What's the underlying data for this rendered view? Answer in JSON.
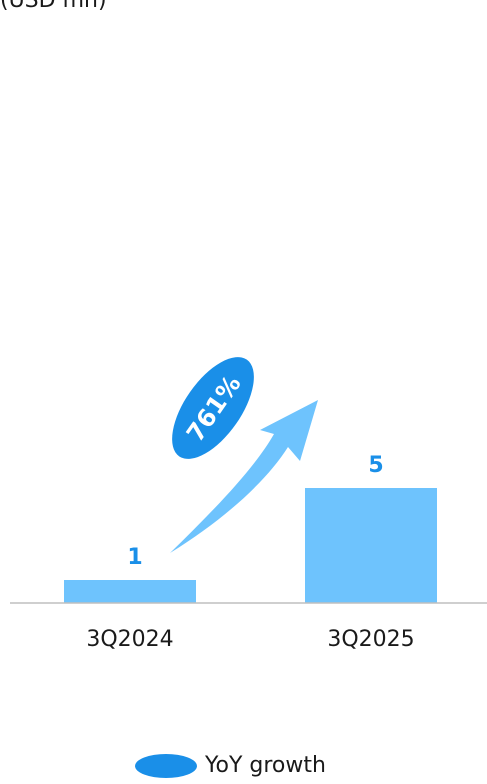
{
  "unit_label": "(USD mn)",
  "chart_data": {
    "type": "bar",
    "categories": [
      "3Q2024",
      "3Q2025"
    ],
    "values": [
      1,
      5
    ],
    "value_labels": [
      "1",
      "5"
    ],
    "ylim": [
      0,
      5.4
    ],
    "growth": {
      "label": "761%"
    },
    "legend": {
      "entries": [
        "YoY growth"
      ],
      "placement": "bottom"
    },
    "colors": {
      "bar": "#6ec3fd",
      "growth_badge": "#1a8fe8",
      "value_label": "#1a8fe8"
    }
  }
}
